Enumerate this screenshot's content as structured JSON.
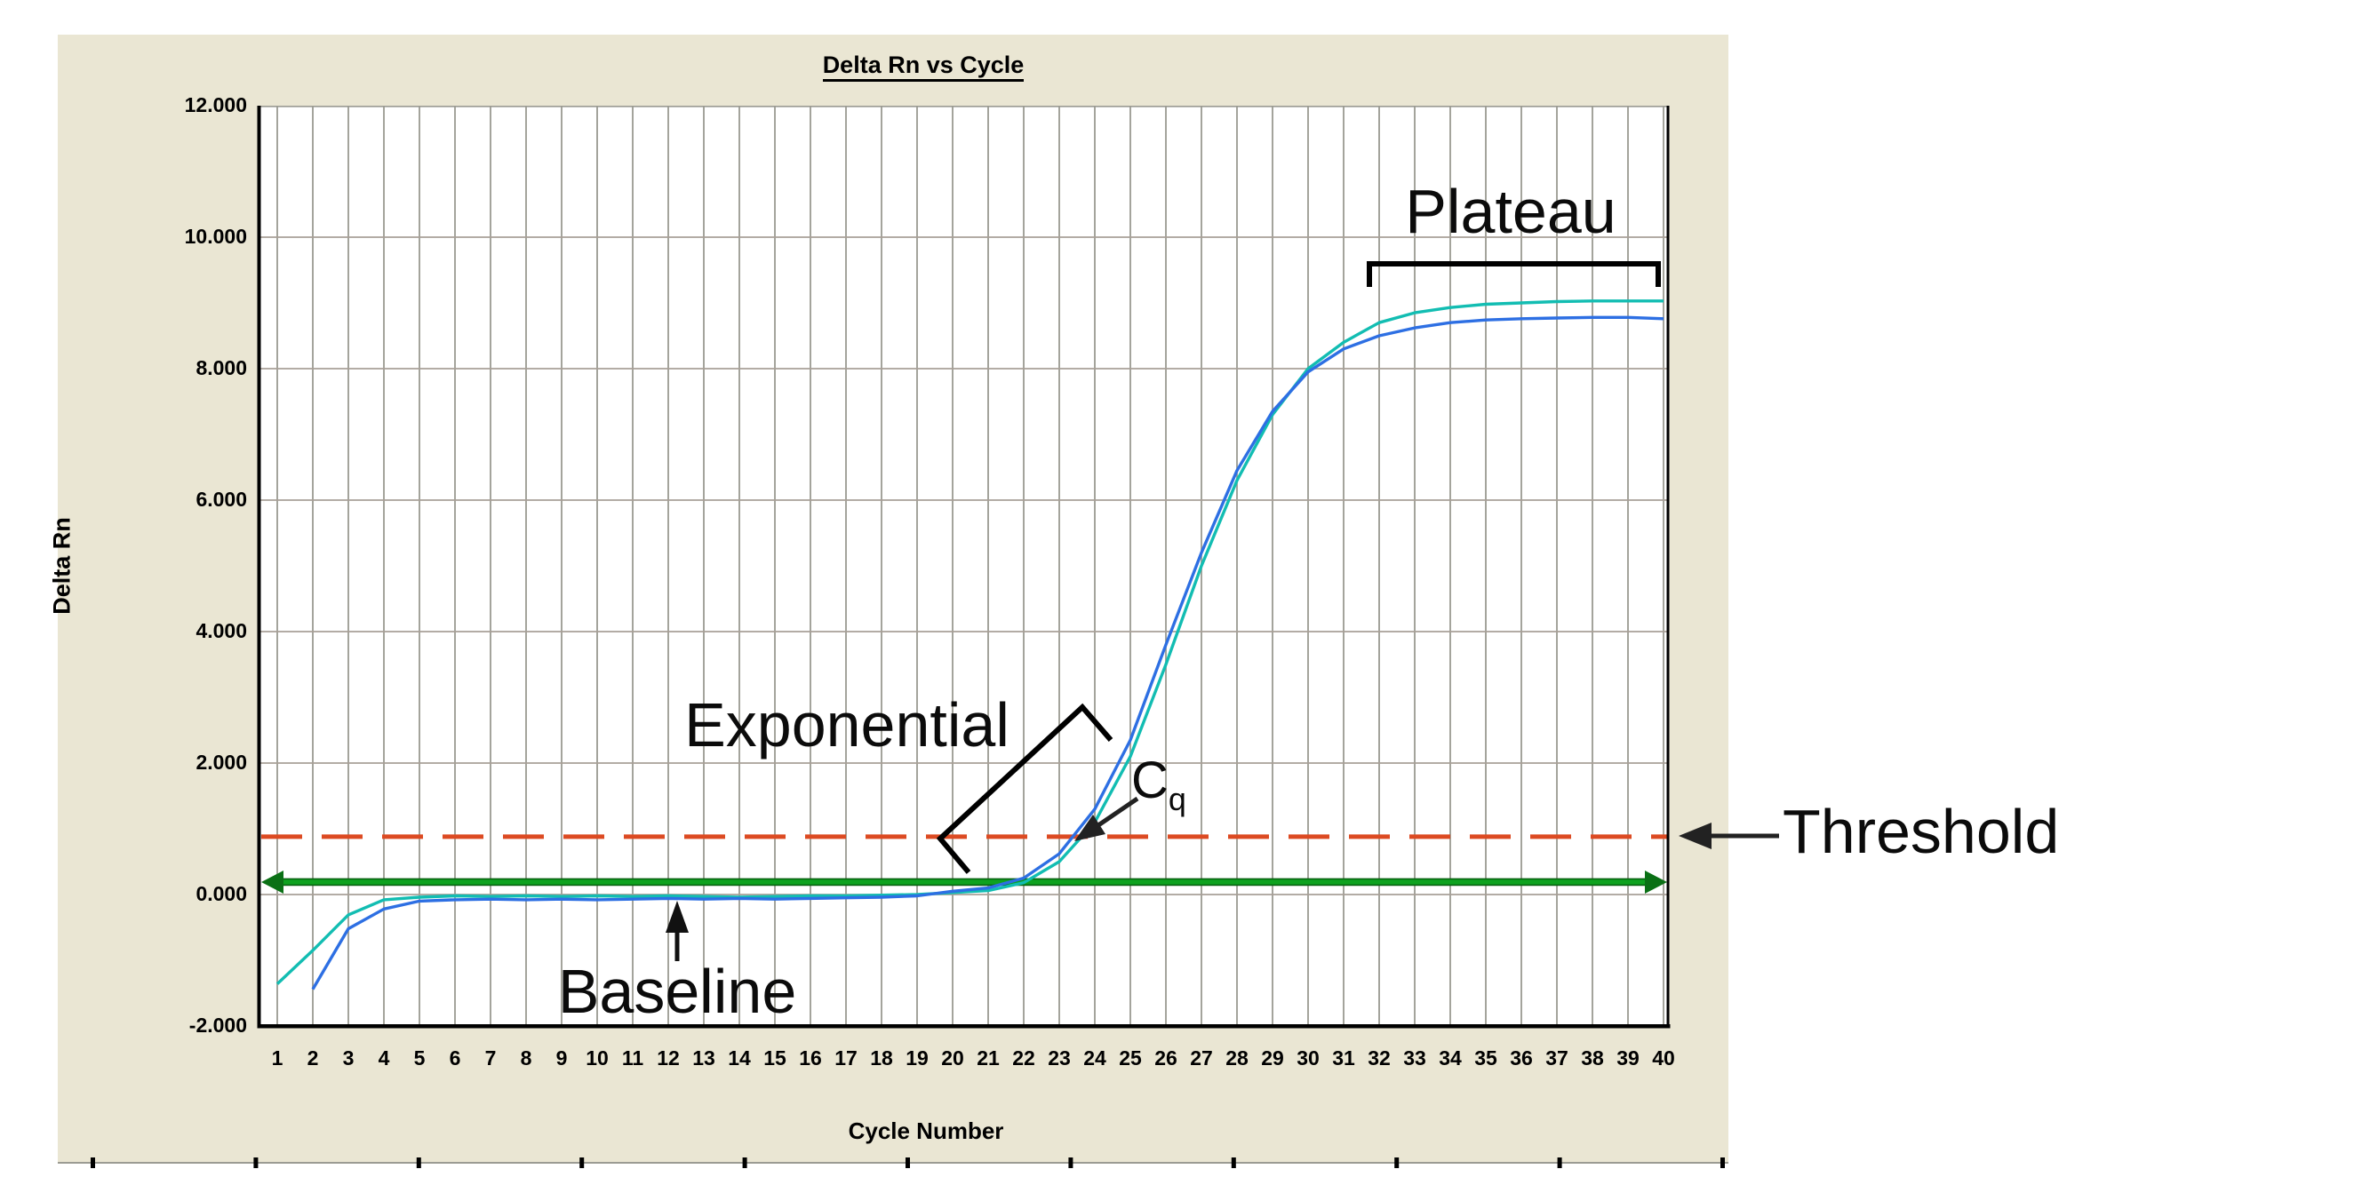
{
  "chart_data": {
    "type": "line",
    "title": "Delta Rn vs Cycle",
    "xlabel": "Cycle Number",
    "ylabel": "Delta Rn",
    "xlim": [
      1,
      40
    ],
    "ylim": [
      -2.0,
      12.0
    ],
    "grid": "on",
    "x_tick_labels": [
      "1",
      "2",
      "3",
      "4",
      "5",
      "6",
      "7",
      "8",
      "9",
      "10",
      "11",
      "12",
      "13",
      "14",
      "15",
      "16",
      "17",
      "18",
      "19",
      "20",
      "21",
      "22",
      "23",
      "24",
      "25",
      "26",
      "27",
      "28",
      "29",
      "30",
      "31",
      "32",
      "33",
      "34",
      "35",
      "36",
      "37",
      "38",
      "39",
      "40"
    ],
    "y_tick_labels": [
      "12.000",
      "10.000",
      "8.000",
      "6.000",
      "4.000",
      "2.000",
      "0.000",
      "-2.000"
    ],
    "y_tick_values": [
      12,
      10,
      8,
      6,
      4,
      2,
      0,
      -2
    ],
    "threshold": {
      "label": "Threshold",
      "value": 0.88,
      "color": "#DC4A22",
      "style": "dashed"
    },
    "baseline": {
      "label": "Baseline",
      "value": 0.19,
      "color": "#0EA21F",
      "style": "solid-double-arrow"
    },
    "cq_cycle": 23.5,
    "series": [
      {
        "name": "amplification-curve-teal",
        "color": "#12BDB2",
        "start_cycle": 1,
        "values": [
          -1.36,
          -0.85,
          -0.31,
          -0.08,
          -0.04,
          -0.02,
          -0.03,
          -0.02,
          -0.03,
          -0.02,
          -0.03,
          -0.02,
          -0.03,
          -0.04,
          -0.03,
          -0.02,
          -0.02,
          -0.01,
          0.0,
          0.03,
          0.06,
          0.18,
          0.5,
          1.1,
          2.1,
          3.5,
          5.0,
          6.3,
          7.3,
          8.0,
          8.4,
          8.7,
          8.85,
          8.93,
          8.98,
          9.0,
          9.02,
          9.03,
          9.03,
          9.03
        ]
      },
      {
        "name": "amplification-curve-blue",
        "color": "#2D6FE3",
        "start_cycle": 2,
        "values": [
          -1.44,
          -0.52,
          -0.22,
          -0.1,
          -0.08,
          -0.07,
          -0.08,
          -0.07,
          -0.08,
          -0.07,
          -0.06,
          -0.07,
          -0.06,
          -0.07,
          -0.06,
          -0.05,
          -0.04,
          -0.02,
          0.05,
          0.1,
          0.25,
          0.62,
          1.3,
          2.35,
          3.8,
          5.2,
          6.45,
          7.35,
          7.95,
          8.3,
          8.5,
          8.62,
          8.7,
          8.74,
          8.76,
          8.77,
          8.78,
          8.78,
          8.76
        ]
      }
    ]
  },
  "annotations": {
    "plateau": "Plateau",
    "exponential": "Exponential",
    "cq_main": "C",
    "cq_sub": "q",
    "baseline": "Baseline",
    "threshold": "Threshold"
  },
  "colors": {
    "panel_background": "#EAE6D3",
    "plot_background": "#FFFFFF",
    "grid_vertical": "#94948A",
    "grid_horizontal": "#A8A098",
    "threshold_line": "#DC4A22",
    "baseline_line": "#0EA21F",
    "baseline_line_edge": "#076110",
    "curve_teal": "#12BDB2",
    "curve_blue": "#2D6FE3",
    "annotation_text": "#0B0B0B"
  }
}
